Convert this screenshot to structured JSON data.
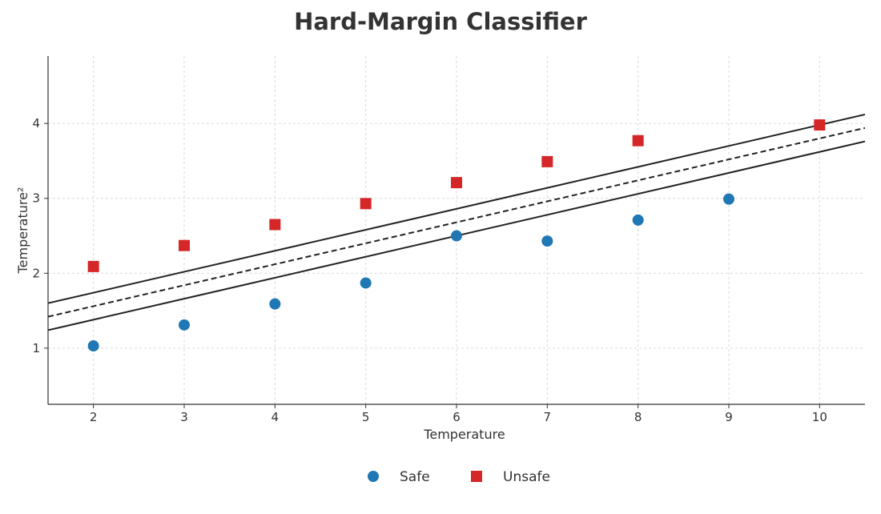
{
  "chart_data": {
    "type": "scatter",
    "title": "Hard-Margin Classifier",
    "xlabel": "Temperature",
    "ylabel": "Temperature²",
    "xlim": [
      1.5,
      10.5
    ],
    "ylim": [
      0.25,
      4.9
    ],
    "xticks": [
      2,
      3,
      4,
      5,
      6,
      7,
      8,
      9,
      10
    ],
    "yticks": [
      1,
      2,
      3,
      4
    ],
    "grid": true,
    "legend_position": "bottom-center",
    "series": [
      {
        "name": "Safe",
        "marker": "circle",
        "color": "#1f77b4",
        "points": [
          [
            2,
            1.03
          ],
          [
            3,
            1.31
          ],
          [
            4,
            1.59
          ],
          [
            5,
            1.87
          ],
          [
            6,
            2.5
          ],
          [
            7,
            2.43
          ],
          [
            8,
            2.71
          ],
          [
            9,
            2.99
          ]
        ]
      },
      {
        "name": "Unsafe",
        "marker": "square",
        "color": "#d62728",
        "points": [
          [
            2,
            2.09
          ],
          [
            3,
            2.37
          ],
          [
            4,
            2.65
          ],
          [
            5,
            2.93
          ],
          [
            6,
            3.21
          ],
          [
            7,
            3.49
          ],
          [
            8,
            3.77
          ],
          [
            10,
            3.98
          ]
        ]
      }
    ],
    "lines": [
      {
        "role": "upper-margin",
        "style": "solid",
        "color": "#222222",
        "slope": 0.28,
        "intercept": 1.18
      },
      {
        "role": "decision-boundary",
        "style": "dashed",
        "color": "#222222",
        "slope": 0.28,
        "intercept": 1.0
      },
      {
        "role": "lower-margin",
        "style": "solid",
        "color": "#222222",
        "slope": 0.28,
        "intercept": 0.82
      }
    ]
  }
}
